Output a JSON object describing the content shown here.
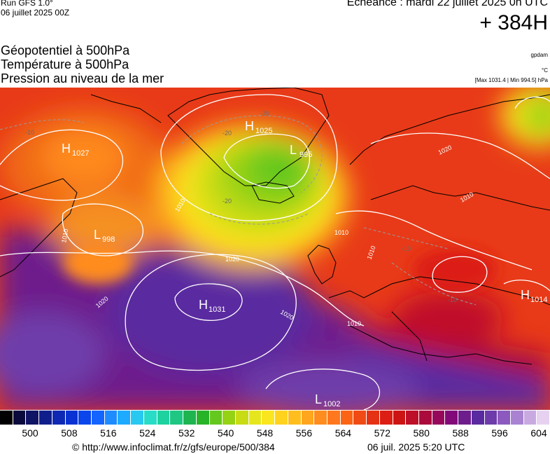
{
  "header": {
    "run_title": "Run GFS 1.0°",
    "run_date": "06 juillet 2025 00Z",
    "expiry": "Echéance : mardi 22 juillet 2025 0h UTC",
    "lead": "+ 384H"
  },
  "parameters": {
    "geopotential": "Géopotentiel à 500hPa",
    "temperature": "Température à 500hPa",
    "pressure": "Pression au niveau de la mer"
  },
  "units": {
    "geopotential": "gpdam",
    "temperature": "°C",
    "pressure_range": "[Max 1031.4 | Min 994.5] hPa"
  },
  "map": {
    "centers": [
      {
        "type": "H",
        "value": "1027"
      },
      {
        "type": "H",
        "value": "1025"
      },
      {
        "type": "L",
        "value": "995"
      },
      {
        "type": "L",
        "value": "998"
      },
      {
        "type": "H",
        "value": "1031"
      },
      {
        "type": "H",
        "value": "1014"
      },
      {
        "type": "L",
        "value": "1002"
      }
    ],
    "isobar_labels": [
      "1020",
      "1020",
      "1020",
      "1020",
      "1010",
      "1010",
      "1010",
      "1010",
      "1010",
      "1010"
    ],
    "temp_labels": [
      "-20",
      "-20",
      "-20",
      "-10",
      "-10",
      "-10"
    ]
  },
  "colorbar": {
    "colors": [
      "#000000",
      "#0a0a3c",
      "#0f1464",
      "#101e8c",
      "#0f28b4",
      "#0a32d2",
      "#0a46ec",
      "#1464ff",
      "#1e8cff",
      "#1eaaff",
      "#28c8f0",
      "#28dcc8",
      "#1ed2a0",
      "#1ec882",
      "#1eb450",
      "#28b428",
      "#64c81e",
      "#96d214",
      "#c8dc14",
      "#e6e61e",
      "#fae61e",
      "#ffd21e",
      "#ffbe1e",
      "#ffa51e",
      "#ff8c1e",
      "#ff781e",
      "#fa6414",
      "#f04b14",
      "#e63214",
      "#dc1e14",
      "#cd1414",
      "#be0f28",
      "#aa0a3c",
      "#96085a",
      "#820a78",
      "#6e1e8c",
      "#5a2aa0",
      "#6e3caa",
      "#8c5abe",
      "#aa82d2",
      "#c8aae1",
      "#e6d2f0"
    ],
    "tick_labels": [
      "500",
      "508",
      "516",
      "524",
      "532",
      "540",
      "548",
      "556",
      "564",
      "572",
      "580",
      "588",
      "596",
      "604"
    ]
  },
  "footer": {
    "url": "© http://www.infoclimat.fr/z/gfs/europe/500/384",
    "date": "06 juil. 2025  5:20 UTC"
  }
}
